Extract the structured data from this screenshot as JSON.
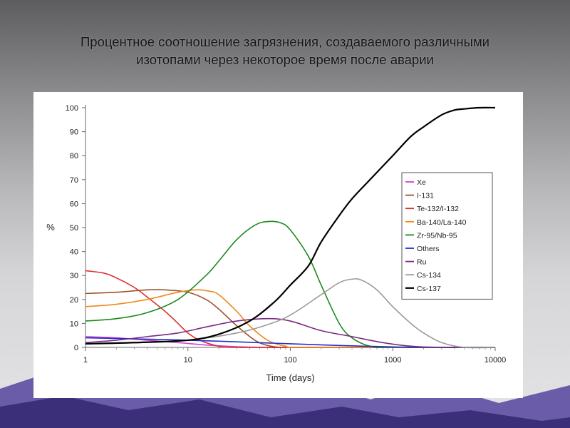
{
  "slide": {
    "title_line1": "Процентное соотношение загрязнения, создаваемого различными",
    "title_line2": "изотопами через некоторое время после аварии"
  },
  "colors": {
    "Xe": "#d43fd8",
    "I-131": "#a0522d",
    "Te-132/I-132": "#d9312b",
    "Ba-140/La-140": "#f08a1c",
    "Zr-95/Nb-95": "#1e8a1e",
    "Others": "#2230c8",
    "Ru": "#7b2a82",
    "Cs-134": "#9b9b9b",
    "Cs-137": "#000000"
  },
  "chart_data": {
    "type": "line",
    "xlabel": "Time (days)",
    "ylabel": "%",
    "xscale": "log",
    "xlim": [
      1,
      10000
    ],
    "ylim": [
      0,
      100
    ],
    "xticks": [
      "1",
      "10",
      "100",
      "1000",
      "10000"
    ],
    "yticks": [
      "0",
      "10",
      "20",
      "30",
      "40",
      "50",
      "60",
      "70",
      "80",
      "90",
      "100"
    ],
    "legend_position": "right",
    "grid": false,
    "series": [
      {
        "name": "Xe",
        "x": [
          1,
          2,
          4,
          8,
          15,
          30,
          60,
          200,
          10000
        ],
        "y": [
          4.5,
          4,
          3,
          2,
          1,
          0.3,
          0,
          0,
          0
        ]
      },
      {
        "name": "I-131",
        "x": [
          1,
          2,
          4,
          6,
          10,
          15,
          20,
          30,
          45,
          60,
          80,
          100,
          10000
        ],
        "y": [
          22.5,
          23,
          24,
          24,
          23,
          20,
          16,
          9,
          3,
          0.8,
          0,
          0,
          0
        ]
      },
      {
        "name": "Te-132/I-132",
        "x": [
          1,
          1.5,
          2,
          3,
          4,
          6,
          8,
          10,
          13,
          20,
          30,
          100,
          10000
        ],
        "y": [
          32,
          31,
          29,
          25,
          21,
          15,
          10,
          6,
          3,
          0.5,
          0,
          0,
          0
        ]
      },
      {
        "name": "Ba-140/La-140",
        "x": [
          1,
          2,
          4,
          8,
          12,
          16,
          20,
          30,
          40,
          60,
          90,
          150,
          10000
        ],
        "y": [
          17,
          18,
          20,
          23,
          24,
          23.5,
          22,
          15,
          9,
          3,
          0.5,
          0,
          0
        ]
      },
      {
        "name": "Zr-95/Nb-95",
        "x": [
          1,
          2,
          4,
          8,
          15,
          20,
          30,
          45,
          60,
          80,
          100,
          150,
          200,
          300,
          400,
          600,
          1000,
          10000
        ],
        "y": [
          11,
          12,
          14.5,
          20,
          30,
          36,
          45,
          51,
          52.5,
          52,
          49,
          38,
          26,
          10,
          4,
          0.5,
          0,
          0
        ]
      },
      {
        "name": "Others",
        "x": [
          1,
          10,
          100,
          300,
          1000,
          2000,
          10000
        ],
        "y": [
          4,
          3,
          1.5,
          0.8,
          0.2,
          0,
          0
        ]
      },
      {
        "name": "Ru",
        "x": [
          1,
          2,
          4,
          8,
          15,
          30,
          60,
          100,
          200,
          400,
          800,
          1500,
          3000,
          10000
        ],
        "y": [
          2,
          3,
          4.5,
          6,
          8.5,
          11,
          12,
          11,
          7,
          4.5,
          2,
          0.5,
          0,
          0
        ]
      },
      {
        "name": "Cs-134",
        "x": [
          1,
          3,
          10,
          30,
          60,
          100,
          200,
          300,
          400,
          500,
          700,
          1000,
          1500,
          2000,
          3000,
          5000,
          10000
        ],
        "y": [
          1.5,
          2,
          3,
          6,
          9.5,
          13.5,
          22,
          27,
          28.5,
          28,
          24,
          17,
          10,
          6,
          2,
          0,
          0
        ]
      },
      {
        "name": "Cs-137",
        "x": [
          1,
          3,
          10,
          20,
          40,
          70,
          100,
          150,
          200,
          300,
          400,
          600,
          1000,
          1500,
          2000,
          3000,
          4000,
          5000,
          7000,
          10000
        ],
        "y": [
          1.5,
          2,
          3,
          5.5,
          11,
          19,
          26,
          34,
          44,
          55,
          62,
          70,
          80,
          88,
          92,
          97,
          99,
          99.5,
          100,
          100
        ]
      }
    ]
  }
}
